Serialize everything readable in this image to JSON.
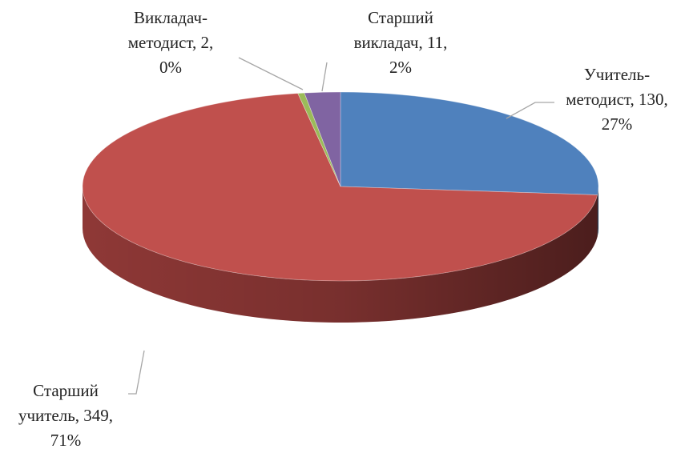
{
  "chart_data": {
    "type": "pie3d",
    "values": [
      130,
      349,
      2,
      11
    ],
    "colors": [
      "#4f81bd",
      "#c0504d",
      "#9bbb59",
      "#8064a2"
    ],
    "side_colors": [
      "#3a6191",
      "#963b39",
      "#76903f",
      "#5f4a7a"
    ],
    "data_labels": [
      [
        "Учитель-",
        "методист, 130,",
        "27%"
      ],
      [
        "Старший",
        "учитель, 349,",
        "71%"
      ],
      [
        "Викладач-",
        "методист, 2,",
        "0%"
      ],
      [
        "Старший",
        "викладач, 11,",
        "2%"
      ]
    ]
  }
}
